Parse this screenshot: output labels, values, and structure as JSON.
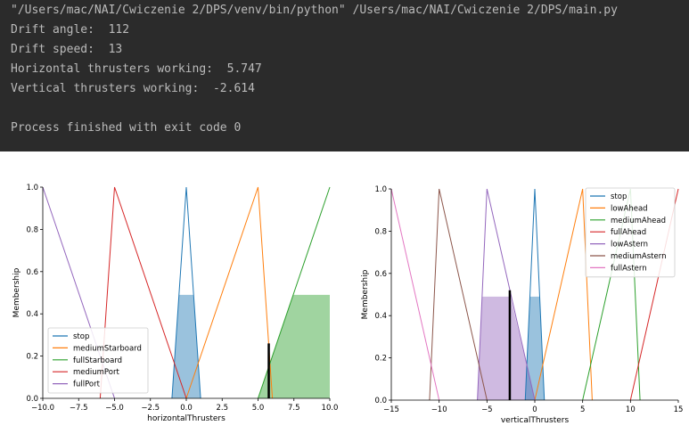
{
  "terminal": {
    "command": "\"/Users/mac/NAI/Cwiczenie 2/DPS/venv/bin/python\" /Users/mac/NAI/Cwiczenie 2/DPS/main.py",
    "lines": [
      "Drift angle:  112",
      "Drift speed:  13",
      "Horizontal thrusters working:  5.747",
      "Vertical thrusters working:  -2.614"
    ],
    "exit_message": "Process finished with exit code 0",
    "background": "#2b2b2b",
    "text_color": "#bbbbbb"
  },
  "chart_data": [
    {
      "type": "line",
      "xlabel": "horizontalThrusters",
      "ylabel": "Membership",
      "xlim": [
        -10,
        10
      ],
      "ylim": [
        0,
        1
      ],
      "xticks": [
        -10,
        -7.5,
        -5,
        -2.5,
        0,
        2.5,
        5,
        7.5,
        10
      ],
      "xtick_labels": [
        "−10.0",
        "−7.5",
        "−5.0",
        "−2.5",
        "0.0",
        "2.5",
        "5.0",
        "7.5",
        "10.0"
      ],
      "yticks": [
        0,
        0.2,
        0.4,
        0.6,
        0.8,
        1.0
      ],
      "ytick_labels": [
        "0.0",
        "0.2",
        "0.4",
        "0.6",
        "0.8",
        "1.0"
      ],
      "legend_position": "bottom-left",
      "series": [
        {
          "name": "stop",
          "color": "#1f77b4",
          "x": [
            -1,
            0,
            1
          ],
          "y": [
            0,
            1,
            0
          ]
        },
        {
          "name": "mediumStarboard",
          "color": "#ff7f0e",
          "x": [
            0,
            5,
            6
          ],
          "y": [
            0,
            1,
            0
          ]
        },
        {
          "name": "fullStarboard",
          "color": "#2ca02c",
          "x": [
            5,
            10
          ],
          "y": [
            0,
            1
          ]
        },
        {
          "name": "mediumPort",
          "color": "#d62728",
          "x": [
            -6,
            -5,
            0
          ],
          "y": [
            0,
            1,
            0
          ]
        },
        {
          "name": "fullPort",
          "color": "#9467bd",
          "x": [
            -10,
            -5
          ],
          "y": [
            1,
            0
          ]
        }
      ],
      "fills": [
        {
          "color": "#1f77b4",
          "x": [
            -1,
            -0.51,
            0.51,
            1
          ],
          "y": [
            0,
            0.49,
            0.49,
            0
          ]
        },
        {
          "color": "#2ca02c",
          "x": [
            5,
            7.45,
            10,
            10
          ],
          "y": [
            0,
            0.49,
            0.49,
            0
          ]
        }
      ],
      "result_line": {
        "x": 5.747,
        "y": 0.26
      }
    },
    {
      "type": "line",
      "xlabel": "verticalThrusters",
      "ylabel": "Membership",
      "xlim": [
        -15,
        15
      ],
      "ylim": [
        0,
        1
      ],
      "xticks": [
        -15,
        -10,
        -5,
        0,
        5,
        10,
        15
      ],
      "xtick_labels": [
        "−15",
        "−10",
        "−5",
        "0",
        "5",
        "10",
        "15"
      ],
      "yticks": [
        0,
        0.2,
        0.4,
        0.6,
        0.8,
        1.0
      ],
      "ytick_labels": [
        "0.0",
        "0.2",
        "0.4",
        "0.6",
        "0.8",
        "1.0"
      ],
      "legend_position": "top-right",
      "series": [
        {
          "name": "stop",
          "color": "#1f77b4",
          "x": [
            -1,
            0,
            1
          ],
          "y": [
            0,
            1,
            0
          ]
        },
        {
          "name": "lowAhead",
          "color": "#ff7f0e",
          "x": [
            0,
            5,
            6
          ],
          "y": [
            0,
            1,
            0
          ]
        },
        {
          "name": "mediumAhead",
          "color": "#2ca02c",
          "x": [
            5,
            10,
            11
          ],
          "y": [
            0,
            1,
            0
          ]
        },
        {
          "name": "fullAhead",
          "color": "#d62728",
          "x": [
            10,
            15
          ],
          "y": [
            0,
            1
          ]
        },
        {
          "name": "lowAstern",
          "color": "#9467bd",
          "x": [
            -6,
            -5,
            0
          ],
          "y": [
            0,
            1,
            0
          ]
        },
        {
          "name": "mediumAstern",
          "color": "#8c564b",
          "x": [
            -11,
            -10,
            -5
          ],
          "y": [
            0,
            1,
            0
          ]
        },
        {
          "name": "fullAstern",
          "color": "#e377c2",
          "x": [
            -15,
            -10
          ],
          "y": [
            1,
            0
          ]
        }
      ],
      "fills": [
        {
          "color": "#9467bd",
          "x": [
            -6,
            -5.51,
            -2.55,
            0
          ],
          "y": [
            0,
            0.49,
            0.49,
            0
          ]
        },
        {
          "color": "#1f77b4",
          "x": [
            -1,
            -0.51,
            0.51,
            1
          ],
          "y": [
            0,
            0.49,
            0.49,
            0
          ]
        }
      ],
      "result_line": {
        "x": -2.614,
        "y": 0.52
      }
    }
  ]
}
